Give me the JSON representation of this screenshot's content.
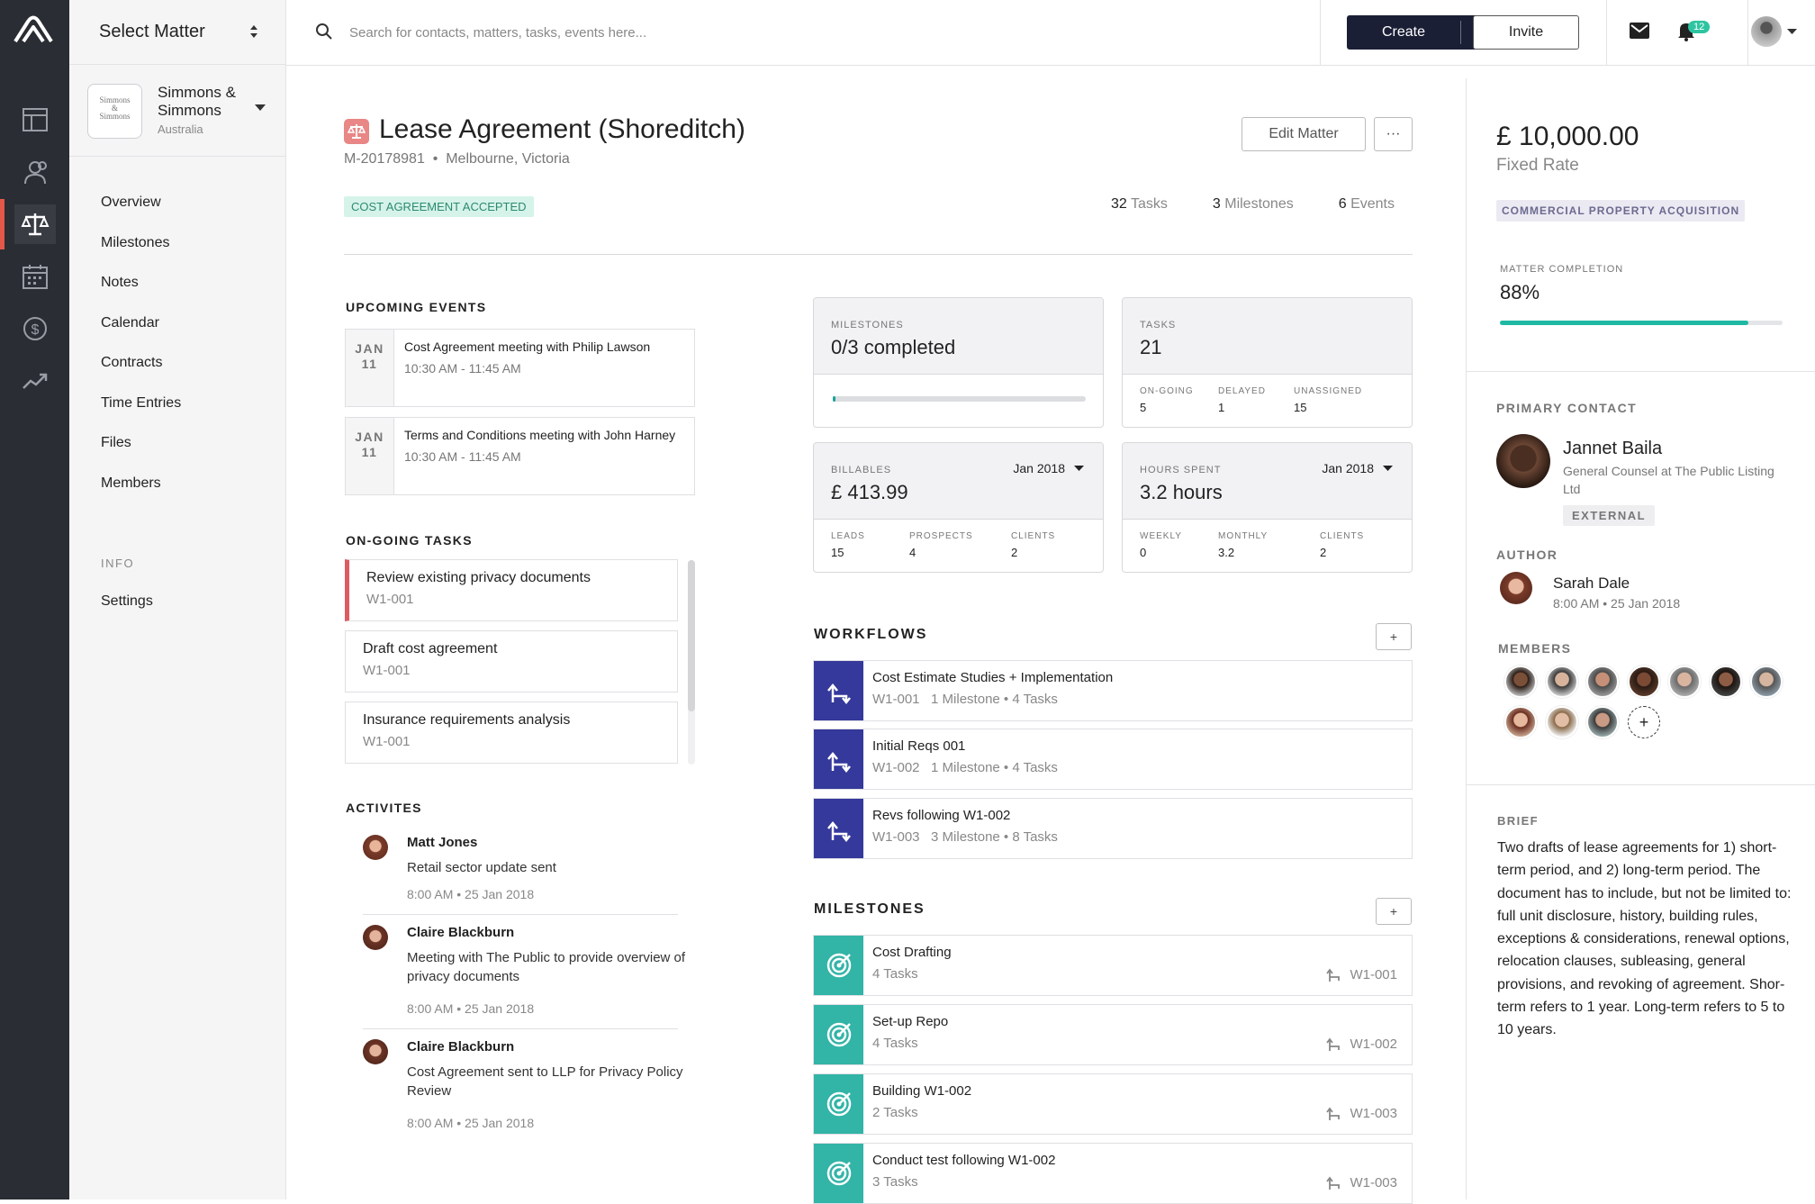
{
  "top": {
    "select_matter": "Select Matter",
    "search_placeholder": "Search for contacts, matters, tasks, events here...",
    "create_label": "Create",
    "invite_label": "Invite",
    "notif_count": "12"
  },
  "client": {
    "logo_text": "Simmons & Simmons",
    "name": "Simmons & Simmons",
    "location": "Australia"
  },
  "sidebar": {
    "items": [
      "Overview",
      "Milestones",
      "Notes",
      "Calendar",
      "Contracts",
      "Time Entries",
      "Files",
      "Members"
    ],
    "info_heading": "INFO",
    "settings": "Settings"
  },
  "matter": {
    "title": "Lease Agreement (Shoreditch)",
    "ref": "M-20178981  •  Melbourne, Victoria",
    "status": "COST AGREEMENT ACCEPTED",
    "edit_label": "Edit Matter",
    "more_label": "···",
    "tasks_count": "32",
    "tasks_label": "Tasks",
    "milestones_count": "3",
    "milestones_label": "Milestones",
    "events_count": "6",
    "events_label": "Events"
  },
  "upcoming": {
    "heading": "UPCOMING EVENTS",
    "events": [
      {
        "month": "JAN",
        "day": "11",
        "title": "Cost Agreement meeting with Philip Lawson",
        "time": "10:30 AM - 11:45 AM"
      },
      {
        "month": "JAN",
        "day": "11",
        "title": "Terms and Conditions meeting with John Harney",
        "time": "10:30 AM - 11:45 AM"
      }
    ]
  },
  "ongoing": {
    "heading": "ON-GOING TASKS",
    "tasks": [
      {
        "title": "Review existing privacy documents",
        "code": "W1-001"
      },
      {
        "title": "Draft cost agreement",
        "code": "W1-001"
      },
      {
        "title": "Insurance requirements analysis",
        "code": "W1-001"
      }
    ]
  },
  "activities": {
    "heading": "ACTIVITES",
    "items": [
      {
        "name": "Matt Jones",
        "text": "Retail sector update sent",
        "time": "8:00 AM • 25 Jan 2018"
      },
      {
        "name": "Claire Blackburn",
        "text": "Meeting with The Public to provide overview of privacy documents",
        "time": "8:00 AM • 25 Jan 2018"
      },
      {
        "name": "Claire Blackburn",
        "text": "Cost Agreement sent to LLP for Privacy Policy Review",
        "time": "8:00 AM • 25 Jan 2018"
      }
    ]
  },
  "cards": {
    "milestones": {
      "label": "MILESTONES",
      "value": "0/3 completed",
      "progress": 0.01
    },
    "tasks": {
      "label": "TASKS",
      "value": "21",
      "stats": [
        {
          "label": "ON-GOING",
          "value": "5"
        },
        {
          "label": "DELAYED",
          "value": "1"
        },
        {
          "label": "UNASSIGNED",
          "value": "15"
        }
      ]
    },
    "billables": {
      "label": "BILLABLES",
      "value": "£ 413.99",
      "period": "Jan 2018",
      "stats": [
        {
          "label": "LEADS",
          "value": "15"
        },
        {
          "label": "PROSPECTS",
          "value": "4"
        },
        {
          "label": "CLIENTS",
          "value": "2"
        }
      ]
    },
    "hours": {
      "label": "HOURS SPENT",
      "value": "3.2 hours",
      "period": "Jan 2018",
      "stats": [
        {
          "label": "WEEKLY",
          "value": "0"
        },
        {
          "label": "MONTHLY",
          "value": "3.2"
        },
        {
          "label": "CLIENTS",
          "value": "2"
        }
      ]
    }
  },
  "workflows": {
    "heading": "WORKFLOWS",
    "add_label": "+",
    "items": [
      {
        "title": "Cost Estimate Studies + Implementation",
        "code": "W1-001",
        "meta": "1 Milestone • 4 Tasks"
      },
      {
        "title": "Initial Reqs 001",
        "code": "W1-002",
        "meta": "1 Milestone • 4 Tasks"
      },
      {
        "title": "Revs following W1-002",
        "code": "W1-003",
        "meta": "3 Milestone • 8 Tasks"
      }
    ]
  },
  "milestones": {
    "heading": "MILESTONES",
    "add_label": "+",
    "items": [
      {
        "title": "Cost Drafting",
        "tasks": "4 Tasks",
        "ref": "W1-001"
      },
      {
        "title": "Set-up Repo",
        "tasks": "4 Tasks",
        "ref": "W1-002"
      },
      {
        "title": "Building W1-002",
        "tasks": "2 Tasks",
        "ref": "W1-003"
      },
      {
        "title": "Conduct test following W1-002",
        "tasks": "3 Tasks",
        "ref": "W1-003"
      }
    ]
  },
  "summary": {
    "amount": "£ 10,000.00",
    "rate": "Fixed Rate",
    "practice": "COMMERCIAL PROPERTY ACQUISITION",
    "completion_label": "MATTER COMPLETION",
    "completion_value": "88%",
    "completion_fraction": 0.88,
    "primary_contact_label": "PRIMARY CONTACT",
    "contact_name": "Jannet Baila",
    "contact_role": "General Counsel at The Public Listing Ltd",
    "contact_tag": "EXTERNAL",
    "author_label": "AUTHOR",
    "author_name": "Sarah Dale",
    "author_time": "8:00 AM • 25 Jan 2018",
    "members_label": "MEMBERS",
    "member_add": "+",
    "brief_label": "BRIEF",
    "brief": "Two drafts of lease agreements for 1) short-term period, and 2) long-term period. The document has to include, but not be limited to: full unit disclosure, history, building rules, exceptions & considerations, renewal options, relocation clauses, subleasing, general provisions, and revoking of agreement. Shor-term refers to 1 year. Long-term refers to 5 to 10 years."
  },
  "colors": {
    "accent": "#1a1f36",
    "workflow": "#34399b",
    "milestone": "#32b4a7",
    "success": "#1fb9a3",
    "danger": "#de5b62"
  }
}
